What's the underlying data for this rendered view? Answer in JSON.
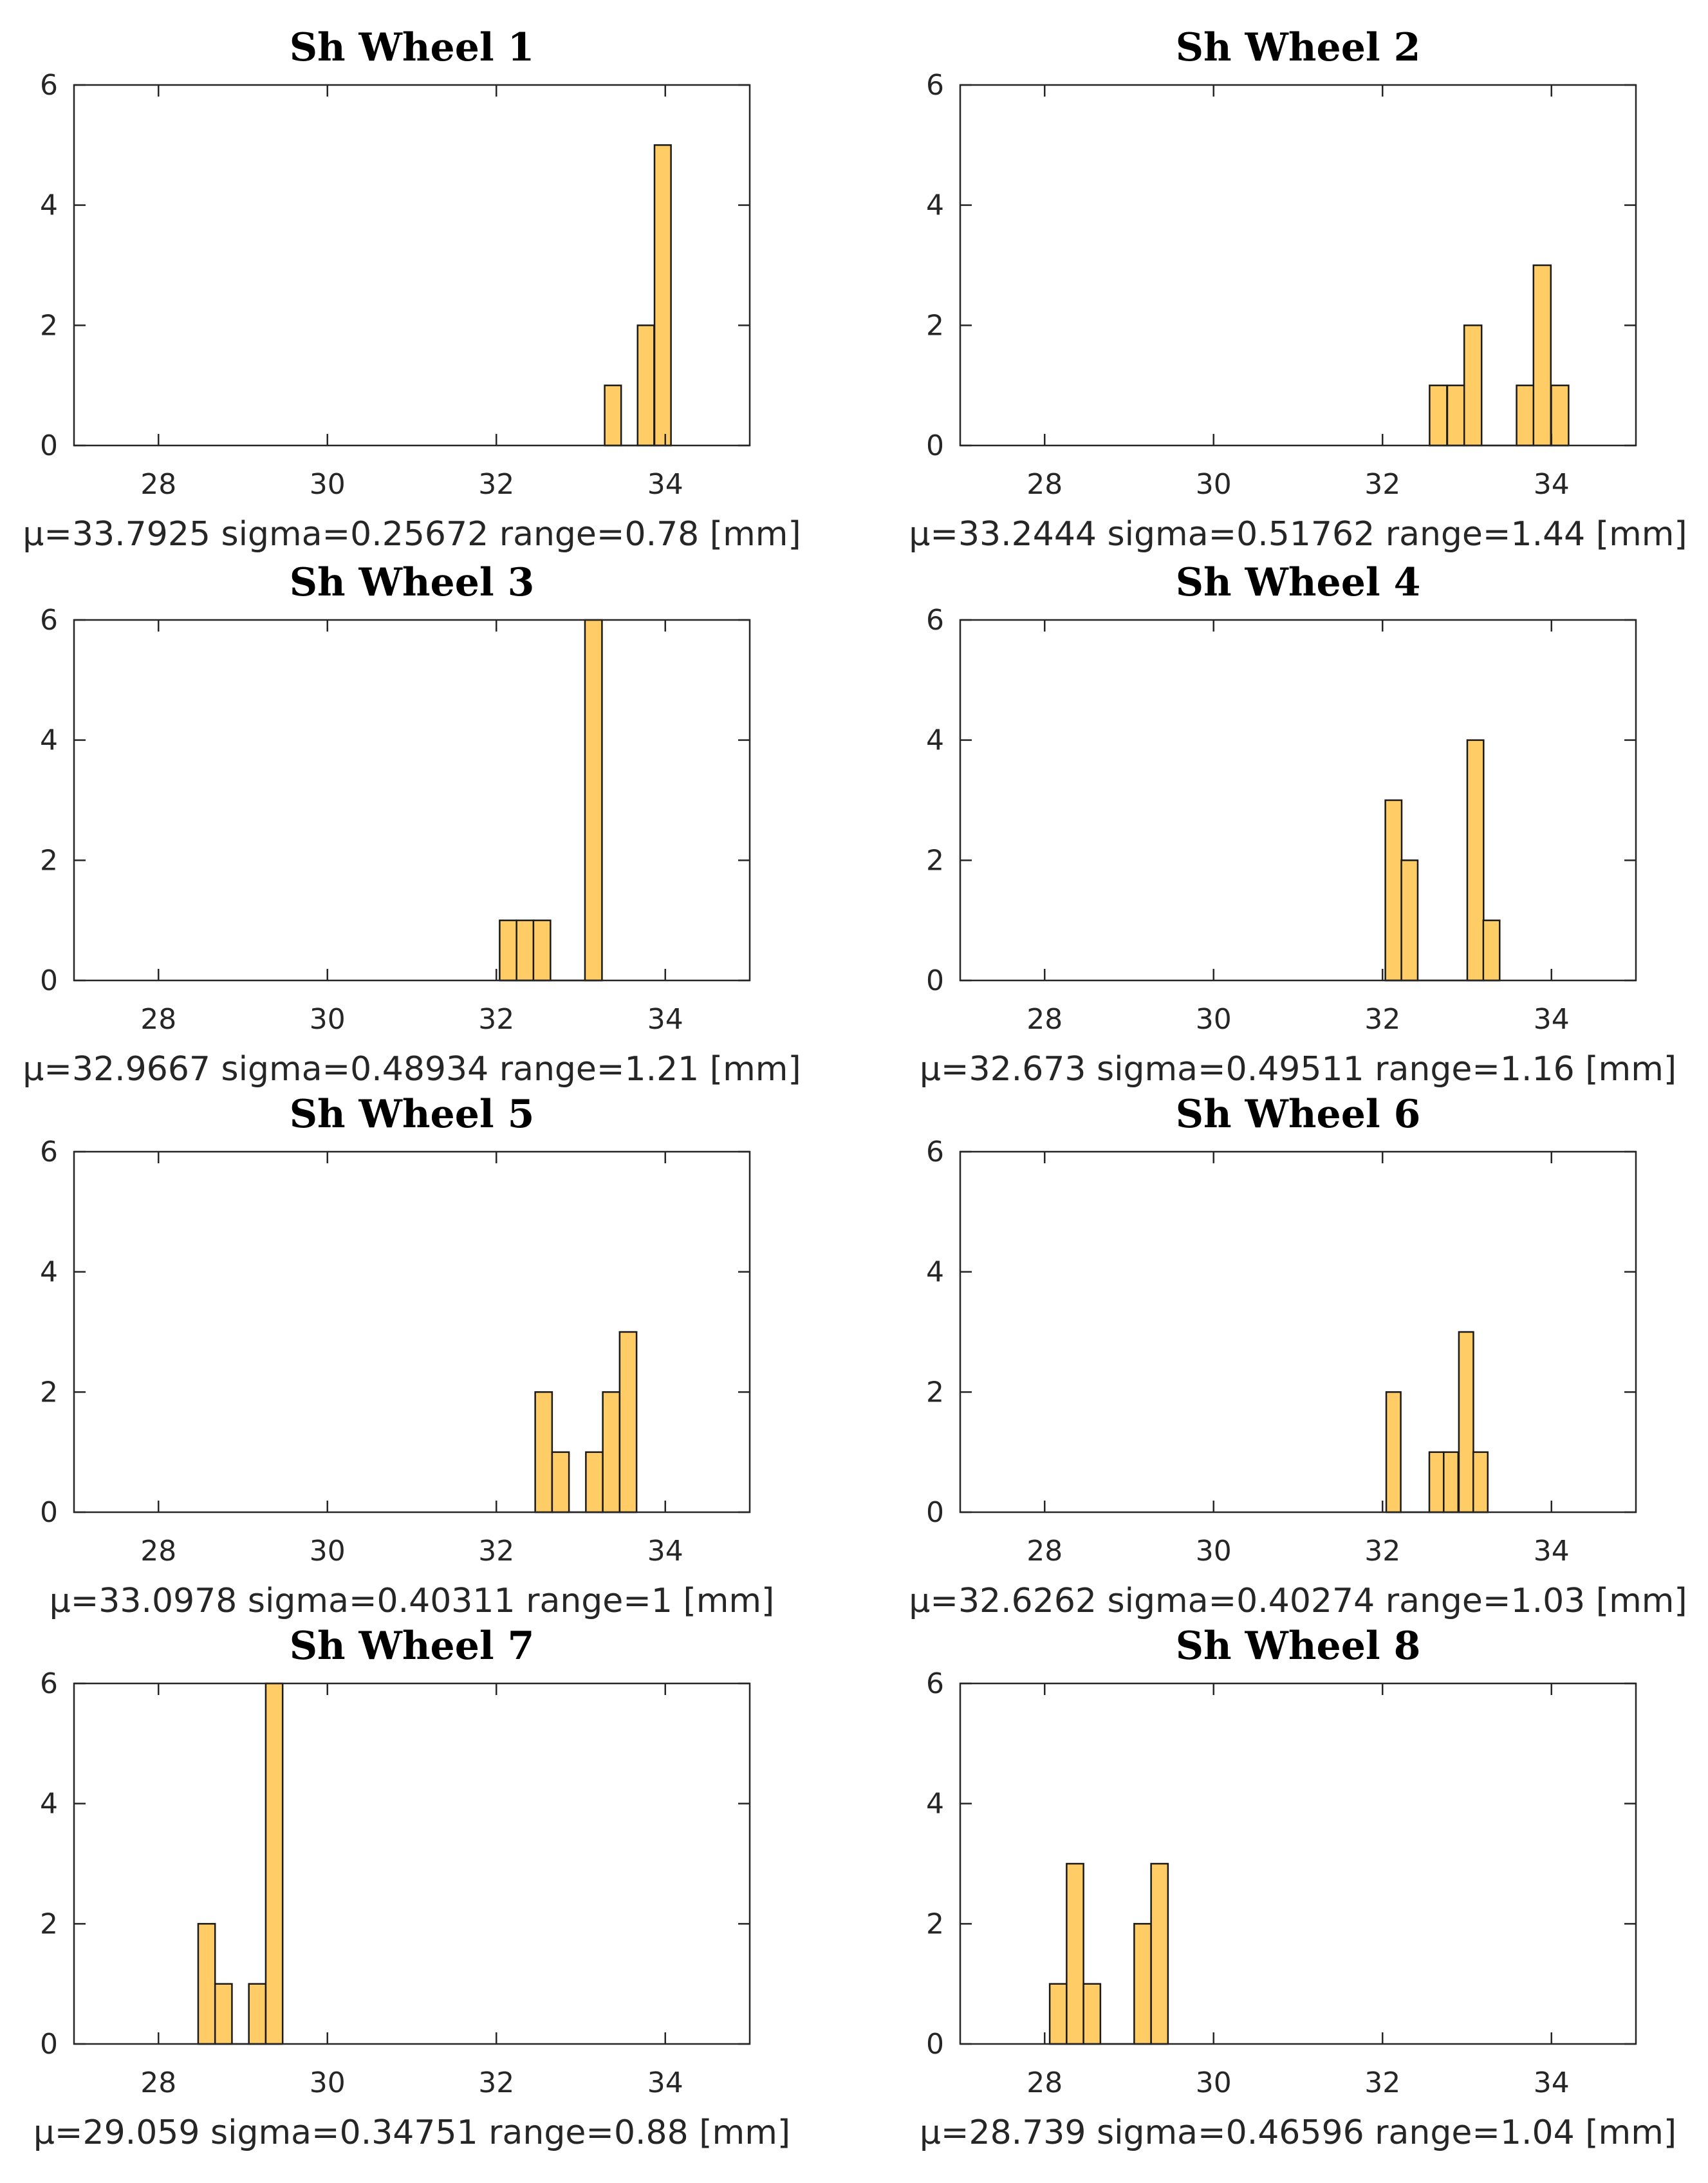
{
  "chart_data": [
    {
      "type": "bar",
      "title": "Sh Wheel 1",
      "xlabel": "μ=33.7925  sigma=0.25672  range=0.78 [mm]",
      "xlim": [
        27,
        35
      ],
      "ylim": [
        0,
        6
      ],
      "xticks": [
        28,
        30,
        32,
        34
      ],
      "yticks": [
        0,
        2,
        4,
        6
      ],
      "bin_width": 0.195,
      "bins": [
        {
          "x": 33.38,
          "count": 1
        },
        {
          "x": 33.58,
          "count": 0
        },
        {
          "x": 33.77,
          "count": 2
        },
        {
          "x": 33.97,
          "count": 5
        }
      ]
    },
    {
      "type": "bar",
      "title": "Sh Wheel 2",
      "xlabel": "μ=33.2444  sigma=0.51762  range=1.44 [mm]",
      "xlim": [
        27,
        35
      ],
      "ylim": [
        0,
        6
      ],
      "xticks": [
        28,
        30,
        32,
        34
      ],
      "yticks": [
        0,
        2,
        4,
        6
      ],
      "bin_width": 0.2057,
      "bins": [
        {
          "x": 32.66,
          "count": 1
        },
        {
          "x": 32.87,
          "count": 1
        },
        {
          "x": 33.07,
          "count": 2
        },
        {
          "x": 33.28,
          "count": 0
        },
        {
          "x": 33.48,
          "count": 0
        },
        {
          "x": 33.69,
          "count": 1
        },
        {
          "x": 33.89,
          "count": 3
        },
        {
          "x": 34.1,
          "count": 1
        }
      ]
    },
    {
      "type": "bar",
      "title": "Sh Wheel 3",
      "xlabel": "μ=32.9667  sigma=0.48934  range=1.21 [mm]",
      "xlim": [
        27,
        35
      ],
      "ylim": [
        0,
        6
      ],
      "xticks": [
        28,
        30,
        32,
        34
      ],
      "yticks": [
        0,
        2,
        4,
        6
      ],
      "bin_width": 0.2017,
      "bins": [
        {
          "x": 32.14,
          "count": 1
        },
        {
          "x": 32.34,
          "count": 1
        },
        {
          "x": 32.54,
          "count": 1
        },
        {
          "x": 32.74,
          "count": 0
        },
        {
          "x": 32.95,
          "count": 0
        },
        {
          "x": 33.15,
          "count": 6
        }
      ]
    },
    {
      "type": "bar",
      "title": "Sh Wheel 4",
      "xlabel": "μ=32.673  sigma=0.49511  range=1.16 [mm]",
      "xlim": [
        27,
        35
      ],
      "ylim": [
        0,
        6
      ],
      "xticks": [
        28,
        30,
        32,
        34
      ],
      "yticks": [
        0,
        2,
        4,
        6
      ],
      "bin_width": 0.1933,
      "bins": [
        {
          "x": 32.13,
          "count": 3
        },
        {
          "x": 32.32,
          "count": 2
        },
        {
          "x": 32.52,
          "count": 0
        },
        {
          "x": 32.71,
          "count": 0
        },
        {
          "x": 32.9,
          "count": 0
        },
        {
          "x": 33.1,
          "count": 4
        },
        {
          "x": 33.29,
          "count": 1
        }
      ]
    },
    {
      "type": "bar",
      "title": "Sh Wheel 5",
      "xlabel": "μ=33.0978  sigma=0.40311  range=1 [mm]",
      "xlim": [
        27,
        35
      ],
      "ylim": [
        0,
        6
      ],
      "xticks": [
        28,
        30,
        32,
        34
      ],
      "yticks": [
        0,
        2,
        4,
        6
      ],
      "bin_width": 0.2,
      "bins": [
        {
          "x": 32.56,
          "count": 2
        },
        {
          "x": 32.76,
          "count": 1
        },
        {
          "x": 32.96,
          "count": 0
        },
        {
          "x": 33.16,
          "count": 1
        },
        {
          "x": 33.36,
          "count": 2
        },
        {
          "x": 33.56,
          "count": 3
        }
      ]
    },
    {
      "type": "bar",
      "title": "Sh Wheel 6",
      "xlabel": "μ=32.6262  sigma=0.40274  range=1.03 [mm]",
      "xlim": [
        27,
        35
      ],
      "ylim": [
        0,
        6
      ],
      "xticks": [
        28,
        30,
        32,
        34
      ],
      "yticks": [
        0,
        2,
        4,
        6
      ],
      "bin_width": 0.1717,
      "bins": [
        {
          "x": 32.13,
          "count": 2
        },
        {
          "x": 32.3,
          "count": 0
        },
        {
          "x": 32.47,
          "count": 0
        },
        {
          "x": 32.64,
          "count": 1
        },
        {
          "x": 32.81,
          "count": 1
        },
        {
          "x": 32.99,
          "count": 3
        },
        {
          "x": 33.16,
          "count": 1
        }
      ]
    },
    {
      "type": "bar",
      "title": "Sh Wheel 7",
      "xlabel": "μ=29.059  sigma=0.34751  range=0.88 [mm]",
      "xlim": [
        27,
        35
      ],
      "ylim": [
        0,
        6
      ],
      "xticks": [
        28,
        30,
        32,
        34
      ],
      "yticks": [
        0,
        2,
        4,
        6
      ],
      "bin_width": 0.2,
      "bins": [
        {
          "x": 28.57,
          "count": 2
        },
        {
          "x": 28.77,
          "count": 1
        },
        {
          "x": 28.97,
          "count": 0
        },
        {
          "x": 29.17,
          "count": 1
        },
        {
          "x": 29.37,
          "count": 6
        }
      ]
    },
    {
      "type": "bar",
      "title": "Sh Wheel 8",
      "xlabel": "μ=28.739  sigma=0.46596  range=1.04 [mm]",
      "xlim": [
        27,
        35
      ],
      "ylim": [
        0,
        6
      ],
      "xticks": [
        28,
        30,
        32,
        34
      ],
      "yticks": [
        0,
        2,
        4,
        6
      ],
      "bin_width": 0.2,
      "bins": [
        {
          "x": 28.16,
          "count": 1
        },
        {
          "x": 28.36,
          "count": 3
        },
        {
          "x": 28.56,
          "count": 1
        },
        {
          "x": 28.76,
          "count": 0
        },
        {
          "x": 28.96,
          "count": 0
        },
        {
          "x": 29.16,
          "count": 2
        },
        {
          "x": 29.36,
          "count": 3
        }
      ]
    }
  ]
}
